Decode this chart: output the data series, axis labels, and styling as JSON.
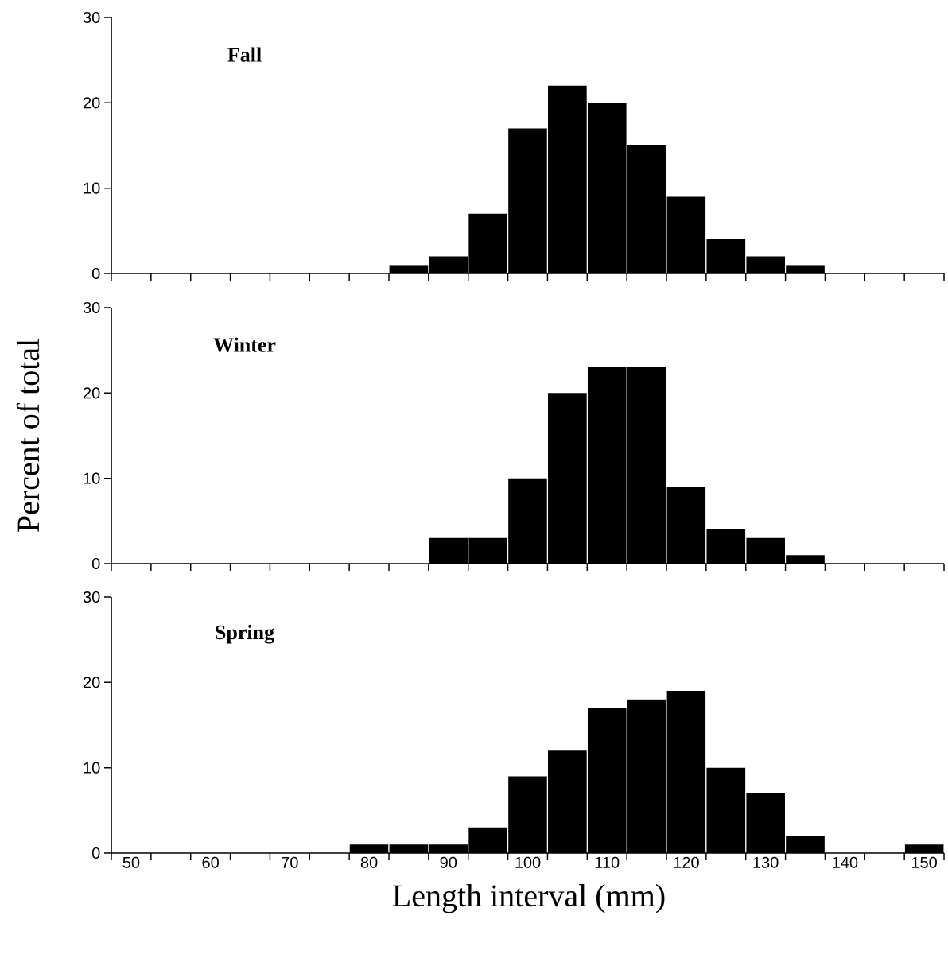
{
  "chart_data": [
    {
      "type": "histogram",
      "title": "**Fall**",
      "color": "#000000",
      "bins": [
        47.5,
        52.5,
        57.5,
        62.5,
        67.5,
        72.5,
        77.5,
        82.5,
        87.5,
        92.5,
        97.5,
        102.5,
        107.5,
        112.5,
        117.5,
        122.5,
        127.5,
        132.5,
        137.5,
        142.5,
        147.5,
        152.5
      ],
      "values": [
        0,
        0,
        0,
        0,
        0,
        0,
        0,
        1,
        2,
        7,
        17,
        22,
        20,
        15,
        9,
        4,
        2,
        1,
        0,
        0,
        0
      ],
      "xlim": [
        47.5,
        152.5
      ],
      "ylim": [
        0,
        30
      ],
      "yticks": [
        0,
        10,
        20,
        30
      ],
      "tick_labels": "y",
      "xticks": [
        {
          "value": 47.5,
          "label": null
        },
        {
          "value": 52.5,
          "label": null
        },
        {
          "value": 57.5,
          "label": null
        },
        {
          "value": 62.5,
          "label": null
        },
        {
          "value": 67.5,
          "label": null
        },
        {
          "value": 72.5,
          "label": null
        },
        {
          "value": 77.5,
          "label": null
        },
        {
          "value": 82.5,
          "label": null
        },
        {
          "value": 87.5,
          "label": null
        },
        {
          "value": 92.5,
          "label": null
        },
        {
          "value": 97.5,
          "label": null
        },
        {
          "value": 102.5,
          "label": null
        },
        {
          "value": 107.5,
          "label": null
        },
        {
          "value": 112.5,
          "label": null
        },
        {
          "value": 117.5,
          "label": null
        },
        {
          "value": 122.5,
          "label": null
        },
        {
          "value": 127.5,
          "label": null
        },
        {
          "value": 132.5,
          "label": null
        },
        {
          "value": 137.5,
          "label": null
        },
        {
          "value": 142.5,
          "label": null
        },
        {
          "value": 147.5,
          "label": null
        },
        {
          "value": 152.5,
          "label": null
        },
        50,
        60,
        70,
        80,
        90,
        100,
        110,
        120,
        130,
        140,
        150
      ]
    },
    {
      "type": "histogram",
      "title": "**Winter**",
      "ylabel": "Percent of total",
      "color": "#000000",
      "bins": [
        47.5,
        52.5,
        57.5,
        62.5,
        67.5,
        72.5,
        77.5,
        82.5,
        87.5,
        92.5,
        97.5,
        102.5,
        107.5,
        112.5,
        117.5,
        122.5,
        127.5,
        132.5,
        137.5,
        142.5,
        147.5,
        152.5
      ],
      "values": [
        0,
        0,
        0,
        0,
        0,
        0,
        0,
        0,
        3,
        3,
        10,
        20,
        23,
        23,
        9,
        4,
        3,
        1,
        0,
        0,
        0
      ],
      "xlim": [
        47.5,
        152.5
      ],
      "ylim": [
        0,
        30
      ],
      "yticks": [
        0,
        10,
        20,
        30
      ],
      "tick_labels": "y",
      "xticks": [
        {
          "value": 47.5,
          "label": null
        },
        {
          "value": 52.5,
          "label": null
        },
        {
          "value": 57.5,
          "label": null
        },
        {
          "value": 62.5,
          "label": null
        },
        {
          "value": 67.5,
          "label": null
        },
        {
          "value": 72.5,
          "label": null
        },
        {
          "value": 77.5,
          "label": null
        },
        {
          "value": 82.5,
          "label": null
        },
        {
          "value": 87.5,
          "label": null
        },
        {
          "value": 92.5,
          "label": null
        },
        {
          "value": 97.5,
          "label": null
        },
        {
          "value": 102.5,
          "label": null
        },
        {
          "value": 107.5,
          "label": null
        },
        {
          "value": 112.5,
          "label": null
        },
        {
          "value": 117.5,
          "label": null
        },
        {
          "value": 122.5,
          "label": null
        },
        {
          "value": 127.5,
          "label": null
        },
        {
          "value": 132.5,
          "label": null
        },
        {
          "value": 137.5,
          "label": null
        },
        {
          "value": 142.5,
          "label": null
        },
        {
          "value": 147.5,
          "label": null
        },
        {
          "value": 152.5,
          "label": null
        },
        50,
        60,
        70,
        80,
        90,
        100,
        110,
        120,
        130,
        140,
        150
      ]
    },
    {
      "type": "histogram",
      "title": "**Spring**",
      "xlabel": "Length interval (mm)",
      "color": "#000000",
      "bins": [
        47.5,
        52.5,
        57.5,
        62.5,
        67.5,
        72.5,
        77.5,
        82.5,
        87.5,
        92.5,
        97.5,
        102.5,
        107.5,
        112.5,
        117.5,
        122.5,
        127.5,
        132.5,
        137.5,
        142.5,
        147.5,
        152.5
      ],
      "values": [
        0,
        0,
        0,
        0,
        0,
        0,
        1,
        1,
        1,
        3,
        9,
        12,
        17,
        18,
        19,
        10,
        7,
        2,
        0,
        0,
        1
      ],
      "xlim": [
        47.5,
        152.5
      ],
      "ylim": [
        0,
        30
      ],
      "yticks": [
        0,
        10,
        20,
        30
      ],
      "xticks": [
        {
          "value": 47.5,
          "label": null
        },
        {
          "value": 52.5,
          "label": null
        },
        {
          "value": 57.5,
          "label": null
        },
        {
          "value": 62.5,
          "label": null
        },
        {
          "value": 67.5,
          "label": null
        },
        {
          "value": 72.5,
          "label": null
        },
        {
          "value": 77.5,
          "label": null
        },
        {
          "value": 82.5,
          "label": null
        },
        {
          "value": 87.5,
          "label": null
        },
        {
          "value": 92.5,
          "label": null
        },
        {
          "value": 97.5,
          "label": null
        },
        {
          "value": 102.5,
          "label": null
        },
        {
          "value": 107.5,
          "label": null
        },
        {
          "value": 112.5,
          "label": null
        },
        {
          "value": 117.5,
          "label": null
        },
        {
          "value": 122.5,
          "label": null
        },
        {
          "value": 127.5,
          "label": null
        },
        {
          "value": 132.5,
          "label": null
        },
        {
          "value": 137.5,
          "label": null
        },
        {
          "value": 142.5,
          "label": null
        },
        {
          "value": 147.5,
          "label": null
        },
        {
          "value": 152.5,
          "label": null
        },
        50,
        60,
        70,
        80,
        90,
        100,
        110,
        120,
        130,
        140,
        150
      ]
    }
  ]
}
